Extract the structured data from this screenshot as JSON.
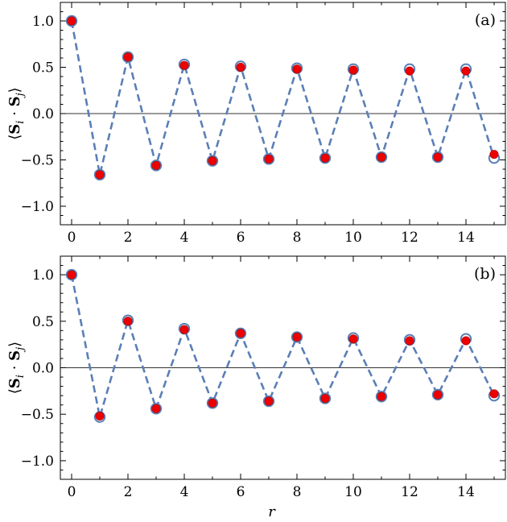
{
  "chart_data": [
    {
      "type": "line",
      "panel_label": "(a)",
      "ylabel": "⟨S_i · S_j⟩",
      "xlabel": "",
      "xlim": [
        -0.4,
        15.4
      ],
      "ylim": [
        -1.2,
        1.2
      ],
      "xticks": [
        0,
        2,
        4,
        6,
        8,
        10,
        12,
        14
      ],
      "yticks": [
        -1.0,
        -0.5,
        0.0,
        0.5,
        1.0
      ],
      "ytick_labels": [
        "−1.0",
        "−0.5",
        "0.0",
        "0.5",
        "1.0"
      ],
      "zero_line": true,
      "series": [
        {
          "style": "dashed line with open circles",
          "color": "#5b7fb5",
          "x": [
            0,
            1,
            2,
            3,
            4,
            5,
            6,
            7,
            8,
            9,
            10,
            11,
            12,
            13,
            14,
            15
          ],
          "values": [
            1.0,
            -0.66,
            0.61,
            -0.56,
            0.53,
            -0.51,
            0.51,
            -0.49,
            0.49,
            -0.48,
            0.48,
            -0.47,
            0.48,
            -0.47,
            0.48,
            -0.48
          ]
        },
        {
          "style": "filled circles",
          "color": "#ee0000",
          "x": [
            0,
            1,
            2,
            3,
            4,
            5,
            6,
            7,
            8,
            9,
            10,
            11,
            12,
            13,
            14,
            15
          ],
          "values": [
            1.0,
            -0.66,
            0.61,
            -0.56,
            0.52,
            -0.51,
            0.5,
            -0.49,
            0.48,
            -0.48,
            0.47,
            -0.47,
            0.46,
            -0.47,
            0.46,
            -0.44
          ]
        }
      ]
    },
    {
      "type": "line",
      "panel_label": "(b)",
      "ylabel": "⟨S_i · S_j⟩",
      "xlabel": "r",
      "xlim": [
        -0.4,
        15.4
      ],
      "ylim": [
        -1.2,
        1.2
      ],
      "xticks": [
        0,
        2,
        4,
        6,
        8,
        10,
        12,
        14
      ],
      "yticks": [
        -1.0,
        -0.5,
        0.0,
        0.5,
        1.0
      ],
      "ytick_labels": [
        "−1.0",
        "−0.5",
        "0.0",
        "0.5",
        "1.0"
      ],
      "zero_line": true,
      "series": [
        {
          "style": "dashed line with open circles",
          "color": "#5b7fb5",
          "x": [
            0,
            1,
            2,
            3,
            4,
            5,
            6,
            7,
            8,
            9,
            10,
            11,
            12,
            13,
            14,
            15
          ],
          "values": [
            1.0,
            -0.53,
            0.51,
            -0.44,
            0.42,
            -0.38,
            0.37,
            -0.36,
            0.33,
            -0.33,
            0.32,
            -0.31,
            0.3,
            -0.29,
            0.31,
            -0.3
          ]
        },
        {
          "style": "filled circles",
          "color": "#ee0000",
          "x": [
            0,
            1,
            2,
            3,
            4,
            5,
            6,
            7,
            8,
            9,
            10,
            11,
            12,
            13,
            14,
            15
          ],
          "values": [
            1.0,
            -0.52,
            0.5,
            -0.44,
            0.41,
            -0.38,
            0.37,
            -0.36,
            0.33,
            -0.33,
            0.31,
            -0.31,
            0.29,
            -0.29,
            0.29,
            -0.28
          ]
        }
      ]
    }
  ]
}
